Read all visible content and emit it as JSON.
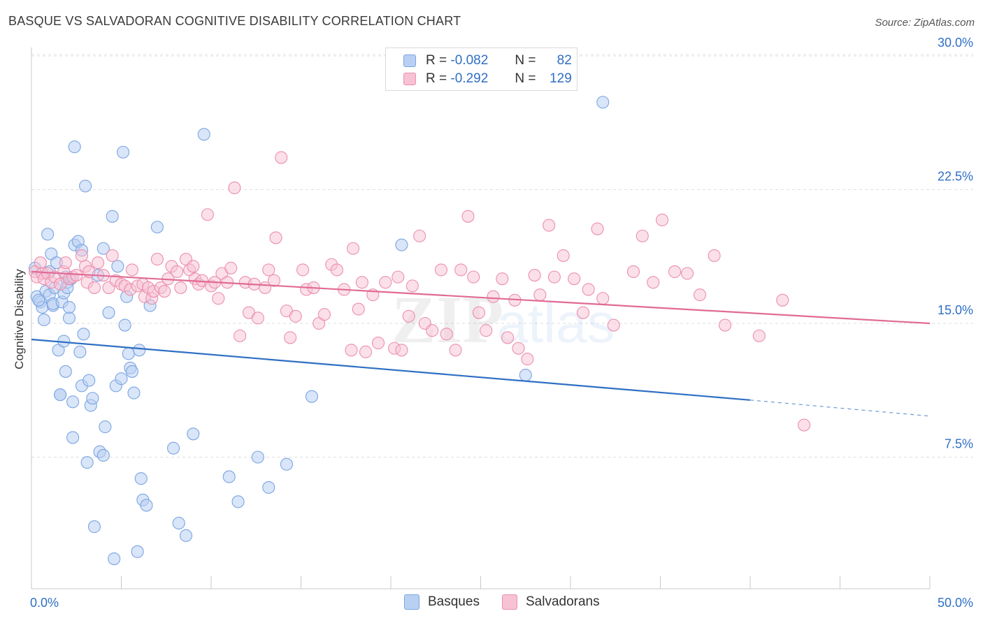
{
  "header": {
    "title": "BASQUE VS SALVADORAN COGNITIVE DISABILITY CORRELATION CHART",
    "source": "Source: ZipAtlas.com"
  },
  "legend": {
    "rows": [
      {
        "r_label": "R =",
        "r_value": "-0.082",
        "n_label": "N =",
        "n_value": "82"
      },
      {
        "r_label": "R =",
        "r_value": "-0.292",
        "n_label": "N =",
        "n_value": "129"
      }
    ]
  },
  "bottom_legend": {
    "items": [
      "Basques",
      "Salvadorans"
    ]
  },
  "colors": {
    "basques_fill": "#b9d0f2",
    "basques_stroke": "#7aa5e3",
    "basques_line": "#2f6fc4",
    "salvadorans_fill": "#f7c2d4",
    "salvadorans_stroke": "#eb8fae",
    "salvadorans_line": "#e06b95",
    "axis_label": "#2f6fc4"
  },
  "chart_data": {
    "type": "scatter",
    "ylabel": "Cognitive Disability",
    "xlim": [
      0,
      50
    ],
    "ylim": [
      0,
      32
    ],
    "x_tick_labels": [
      "0.0%",
      "50.0%"
    ],
    "y_ticks": [
      7.5,
      15.0,
      22.5,
      30.0
    ],
    "y_tick_labels": [
      "7.5%",
      "15.0%",
      "22.5%",
      "30.0%"
    ],
    "grid": "horizontal dashed",
    "watermark": "ZIPatlas",
    "series": [
      {
        "name": "Basques",
        "trend": {
          "x0": 0,
          "y0": 14.1,
          "x1": 40,
          "y1": 10.7,
          "dashed_to_x": 50,
          "dashed_to_y": 9.8
        },
        "points": [
          [
            0.2,
            18.1
          ],
          [
            0.3,
            16.5
          ],
          [
            0.5,
            16.2
          ],
          [
            0.6,
            15.9
          ],
          [
            0.7,
            15.2
          ],
          [
            0.8,
            16.8
          ],
          [
            0.9,
            20.0
          ],
          [
            1.0,
            16.6
          ],
          [
            1.0,
            17.9
          ],
          [
            1.1,
            18.9
          ],
          [
            1.2,
            16.0
          ],
          [
            1.2,
            16.1
          ],
          [
            1.3,
            17.0
          ],
          [
            1.5,
            13.5
          ],
          [
            1.6,
            11.0
          ],
          [
            1.6,
            11.0
          ],
          [
            1.7,
            16.2
          ],
          [
            1.8,
            16.7
          ],
          [
            1.8,
            14.0
          ],
          [
            1.9,
            12.3
          ],
          [
            2.0,
            17.3
          ],
          [
            2.0,
            17.0
          ],
          [
            2.1,
            15.3
          ],
          [
            2.1,
            15.9
          ],
          [
            2.3,
            10.6
          ],
          [
            2.3,
            8.6
          ],
          [
            2.4,
            24.9
          ],
          [
            2.4,
            19.4
          ],
          [
            2.6,
            19.6
          ],
          [
            2.7,
            13.4
          ],
          [
            2.8,
            11.5
          ],
          [
            2.8,
            19.1
          ],
          [
            2.9,
            14.4
          ],
          [
            3.0,
            22.7
          ],
          [
            3.1,
            7.2
          ],
          [
            3.2,
            11.8
          ],
          [
            3.3,
            10.4
          ],
          [
            3.4,
            10.8
          ],
          [
            3.5,
            3.6
          ],
          [
            3.7,
            17.7
          ],
          [
            3.8,
            7.8
          ],
          [
            4.0,
            7.6
          ],
          [
            4.0,
            19.2
          ],
          [
            4.1,
            9.2
          ],
          [
            4.3,
            15.6
          ],
          [
            4.5,
            21.0
          ],
          [
            4.6,
            1.8
          ],
          [
            4.7,
            11.5
          ],
          [
            4.8,
            18.2
          ],
          [
            5.0,
            11.9
          ],
          [
            5.1,
            24.6
          ],
          [
            5.2,
            14.9
          ],
          [
            5.3,
            16.5
          ],
          [
            5.4,
            13.3
          ],
          [
            5.5,
            12.5
          ],
          [
            5.6,
            12.3
          ],
          [
            5.7,
            11.1
          ],
          [
            5.9,
            2.2
          ],
          [
            6.0,
            13.5
          ],
          [
            6.1,
            6.3
          ],
          [
            6.2,
            5.1
          ],
          [
            6.4,
            4.8
          ],
          [
            6.6,
            16.0
          ],
          [
            7.0,
            20.4
          ],
          [
            7.9,
            8.0
          ],
          [
            8.2,
            3.8
          ],
          [
            8.6,
            3.1
          ],
          [
            9.0,
            8.8
          ],
          [
            9.6,
            25.6
          ],
          [
            11.0,
            6.4
          ],
          [
            11.5,
            5.0
          ],
          [
            12.6,
            7.5
          ],
          [
            13.2,
            5.8
          ],
          [
            14.2,
            7.1
          ],
          [
            15.6,
            10.9
          ],
          [
            20.6,
            19.4
          ],
          [
            27.5,
            12.1
          ],
          [
            31.8,
            27.4
          ],
          [
            1.4,
            18.4
          ],
          [
            0.4,
            16.3
          ],
          [
            2.2,
            17.5
          ],
          [
            1.9,
            17.6
          ]
        ]
      },
      {
        "name": "Salvadorans",
        "trend": {
          "x0": 0,
          "y0": 17.9,
          "x1": 50,
          "y1": 15.0
        },
        "points": [
          [
            0.2,
            17.9
          ],
          [
            0.3,
            17.6
          ],
          [
            0.5,
            18.4
          ],
          [
            0.6,
            17.8
          ],
          [
            0.7,
            17.5
          ],
          [
            0.9,
            17.8
          ],
          [
            1.1,
            17.3
          ],
          [
            1.3,
            17.6
          ],
          [
            1.6,
            17.2
          ],
          [
            1.8,
            17.9
          ],
          [
            1.9,
            18.4
          ],
          [
            2.1,
            17.5
          ],
          [
            2.3,
            17.6
          ],
          [
            2.5,
            17.7
          ],
          [
            2.8,
            18.8
          ],
          [
            3.0,
            18.2
          ],
          [
            3.1,
            17.3
          ],
          [
            3.2,
            17.9
          ],
          [
            3.5,
            17.0
          ],
          [
            3.7,
            18.4
          ],
          [
            4.0,
            17.7
          ],
          [
            4.3,
            17.0
          ],
          [
            4.5,
            18.8
          ],
          [
            4.7,
            17.4
          ],
          [
            5.0,
            17.2
          ],
          [
            5.2,
            17.1
          ],
          [
            5.5,
            16.9
          ],
          [
            5.6,
            18.0
          ],
          [
            5.9,
            17.1
          ],
          [
            6.2,
            17.2
          ],
          [
            6.3,
            16.5
          ],
          [
            6.5,
            17.0
          ],
          [
            6.7,
            16.4
          ],
          [
            6.8,
            16.8
          ],
          [
            7.0,
            18.6
          ],
          [
            7.2,
            17.0
          ],
          [
            7.4,
            16.8
          ],
          [
            7.6,
            17.5
          ],
          [
            7.8,
            18.2
          ],
          [
            8.1,
            17.9
          ],
          [
            8.3,
            17.0
          ],
          [
            8.6,
            18.6
          ],
          [
            8.8,
            18.0
          ],
          [
            9.0,
            18.2
          ],
          [
            9.1,
            17.5
          ],
          [
            9.3,
            17.2
          ],
          [
            9.5,
            17.4
          ],
          [
            9.8,
            21.1
          ],
          [
            10.0,
            17.1
          ],
          [
            10.2,
            17.3
          ],
          [
            10.4,
            16.4
          ],
          [
            10.6,
            17.8
          ],
          [
            10.9,
            17.3
          ],
          [
            11.1,
            18.1
          ],
          [
            11.3,
            22.6
          ],
          [
            11.6,
            14.3
          ],
          [
            11.9,
            17.3
          ],
          [
            12.1,
            15.6
          ],
          [
            12.4,
            17.2
          ],
          [
            12.6,
            15.3
          ],
          [
            13.0,
            17.0
          ],
          [
            13.2,
            18.0
          ],
          [
            13.5,
            17.4
          ],
          [
            13.6,
            19.8
          ],
          [
            13.9,
            24.3
          ],
          [
            14.2,
            15.7
          ],
          [
            14.4,
            14.2
          ],
          [
            14.7,
            15.4
          ],
          [
            15.1,
            18.0
          ],
          [
            15.3,
            16.9
          ],
          [
            15.7,
            17.0
          ],
          [
            16.0,
            15.0
          ],
          [
            16.3,
            15.5
          ],
          [
            16.7,
            18.3
          ],
          [
            17.0,
            18.0
          ],
          [
            17.4,
            16.9
          ],
          [
            17.8,
            13.5
          ],
          [
            17.9,
            19.2
          ],
          [
            18.2,
            15.8
          ],
          [
            18.4,
            17.3
          ],
          [
            18.6,
            13.4
          ],
          [
            19.0,
            16.6
          ],
          [
            19.3,
            13.9
          ],
          [
            19.7,
            17.3
          ],
          [
            20.2,
            13.6
          ],
          [
            20.4,
            17.6
          ],
          [
            20.6,
            13.5
          ],
          [
            21.0,
            15.4
          ],
          [
            21.2,
            17.1
          ],
          [
            21.6,
            19.9
          ],
          [
            21.9,
            15.0
          ],
          [
            22.3,
            14.6
          ],
          [
            22.8,
            18.0
          ],
          [
            23.1,
            14.4
          ],
          [
            23.6,
            13.5
          ],
          [
            23.9,
            18.0
          ],
          [
            24.3,
            21.0
          ],
          [
            24.6,
            17.6
          ],
          [
            24.9,
            15.6
          ],
          [
            25.3,
            14.6
          ],
          [
            25.7,
            16.5
          ],
          [
            26.2,
            17.5
          ],
          [
            26.5,
            14.2
          ],
          [
            26.9,
            16.3
          ],
          [
            27.1,
            13.6
          ],
          [
            27.6,
            13.0
          ],
          [
            28.0,
            17.7
          ],
          [
            28.3,
            16.6
          ],
          [
            28.8,
            20.5
          ],
          [
            29.1,
            17.6
          ],
          [
            29.6,
            18.8
          ],
          [
            30.2,
            17.5
          ],
          [
            30.7,
            15.6
          ],
          [
            31.0,
            16.9
          ],
          [
            31.5,
            20.3
          ],
          [
            31.8,
            16.4
          ],
          [
            32.4,
            14.9
          ],
          [
            33.5,
            17.9
          ],
          [
            34.0,
            19.9
          ],
          [
            34.6,
            17.3
          ],
          [
            35.1,
            20.8
          ],
          [
            35.8,
            17.9
          ],
          [
            36.5,
            17.8
          ],
          [
            37.2,
            16.6
          ],
          [
            38.0,
            18.8
          ],
          [
            38.6,
            14.9
          ],
          [
            40.5,
            14.3
          ],
          [
            41.8,
            16.3
          ],
          [
            43.0,
            9.3
          ]
        ]
      }
    ]
  }
}
